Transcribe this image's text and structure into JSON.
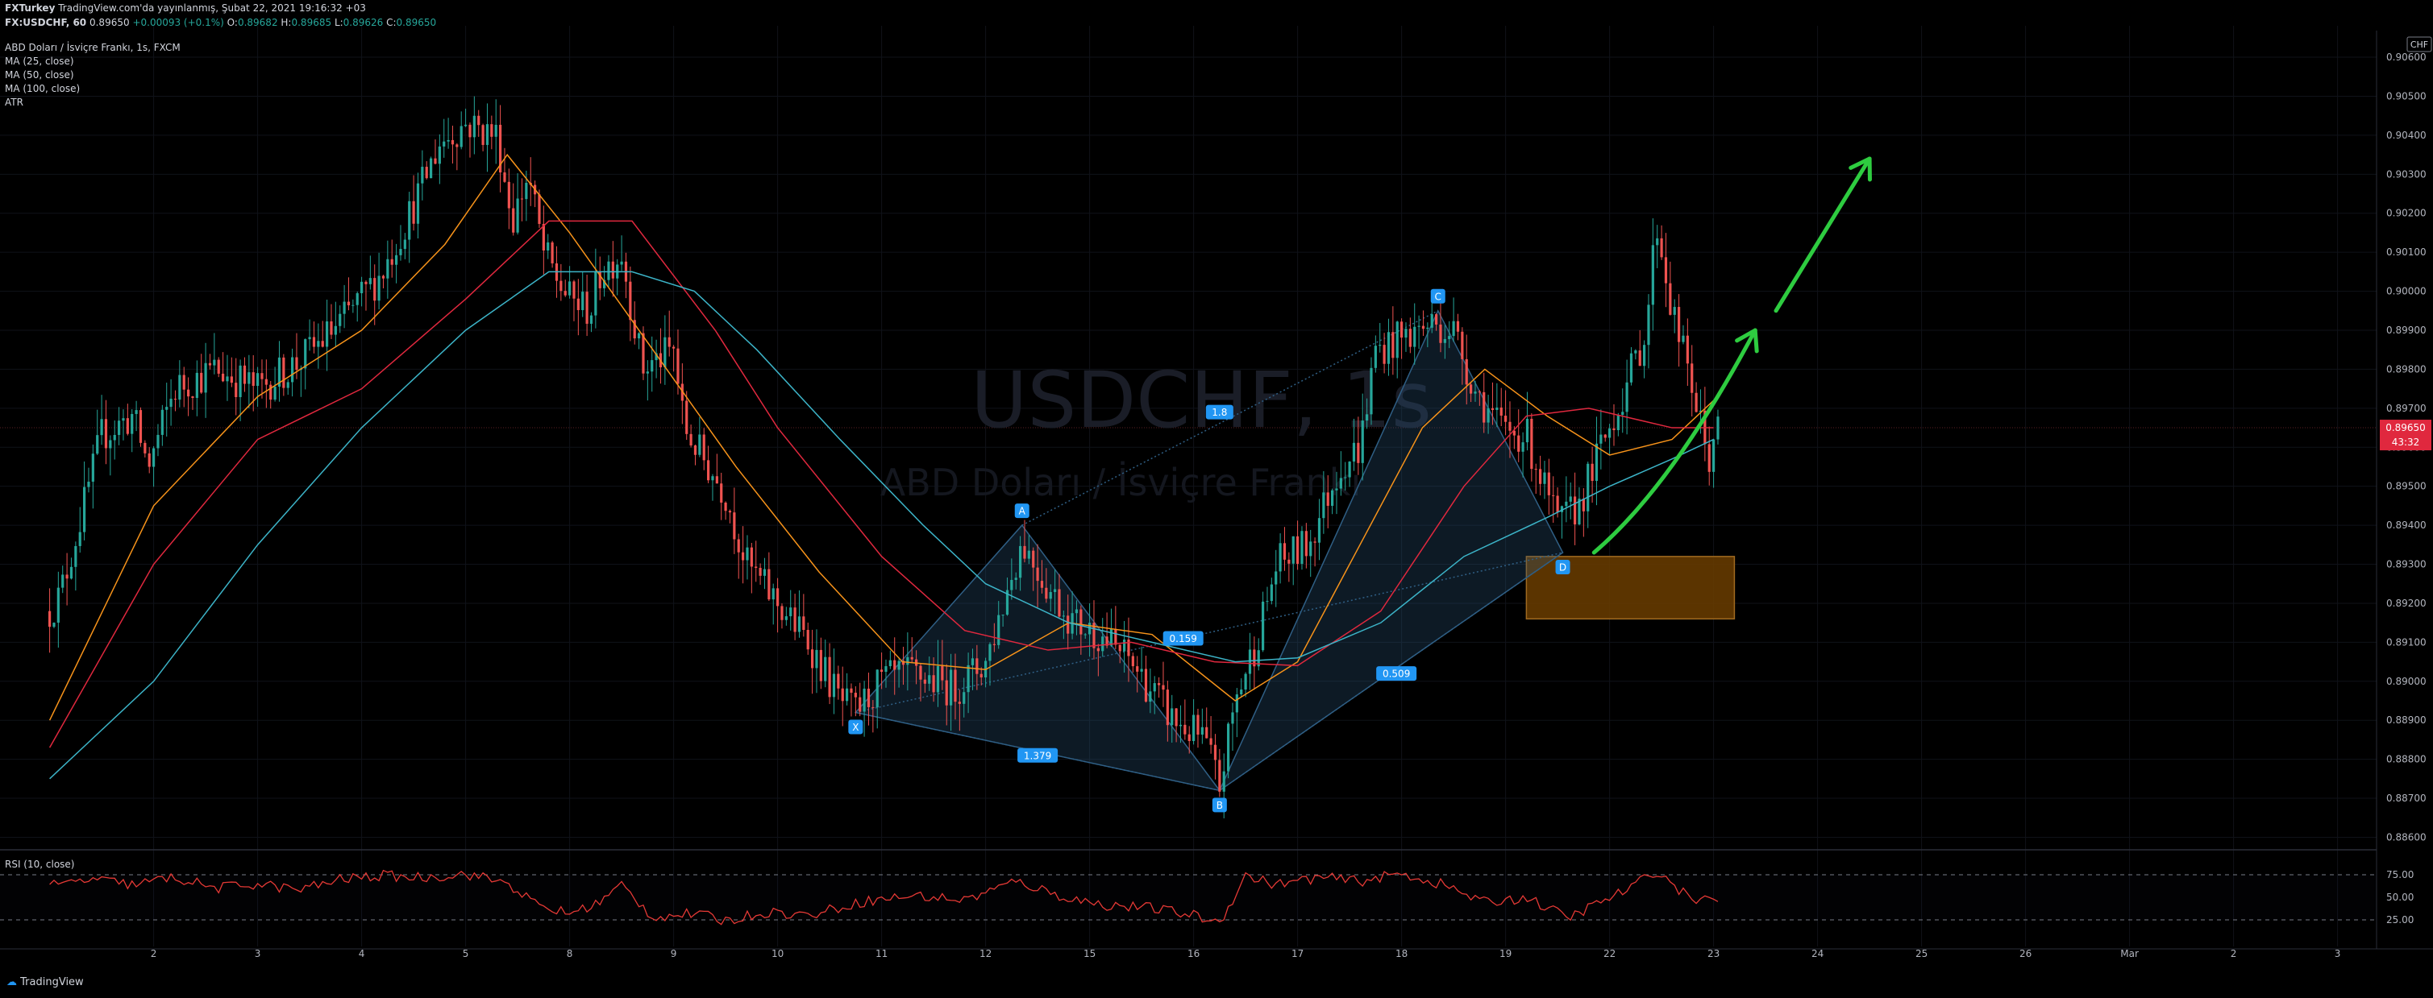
{
  "header": {
    "author": "FXTurkey",
    "published": "TradingView.com'da yayınlanmış, Şubat 22, 2021 19:16:32 +03",
    "symbol": "FX:USDCHF, 60",
    "last": "0.89650",
    "change": "+0.00093 (+0.1%)",
    "o_label": "O:",
    "o": "0.89682",
    "h_label": "H:",
    "h": "0.89685",
    "l_label": "L:",
    "l": "0.89626",
    "c_label": "C:",
    "c": "0.89650"
  },
  "legend": {
    "name": "ABD Doları / İsviçre Frankı, 1s, FXCM",
    "ma25": "MA (25, close)",
    "ma50": "MA (50, close)",
    "ma100": "MA (100, close)",
    "atr": "ATR"
  },
  "watermark": {
    "symbol": "USDCHF, 1s",
    "name": "ABD Doları / İsviçre Frankı"
  },
  "rsi": {
    "label": "RSI (10, close)",
    "levels": [
      "75.00",
      "50.00",
      "25.00"
    ]
  },
  "footer": {
    "brand": "TradingView"
  },
  "price_axis": {
    "currency": "CHF",
    "price_tag": "0.89650",
    "countdown": "43:32"
  },
  "colors": {
    "background": "#000000",
    "up": "#26a69a",
    "down": "#ef5350",
    "ma25": "#f7931a",
    "ma50": "#e0283e",
    "ma100": "#3cb4c8",
    "pattern": "#2f5f85",
    "label_bg": "#2196f3",
    "zone": "#6b3d00",
    "arrow": "#2ecc40",
    "rsi": "#e53935"
  },
  "chart_data": {
    "type": "candlestick",
    "title": "USDCHF, 1s",
    "ylim": [
      0.8857,
      0.9066
    ],
    "price_ticks": [
      "0.88600",
      "0.88700",
      "0.88800",
      "0.88900",
      "0.89000",
      "0.89100",
      "0.89200",
      "0.89300",
      "0.89400",
      "0.89500",
      "0.89600",
      "0.89700",
      "0.89800",
      "0.89900",
      "0.90000",
      "0.90100",
      "0.90200",
      "0.90300",
      "0.90400",
      "0.90500",
      "0.90600"
    ],
    "date_ticks": [
      "2",
      "3",
      "4",
      "5",
      "8",
      "9",
      "10",
      "11",
      "12",
      "15",
      "16",
      "17",
      "18",
      "19",
      "22",
      "23",
      "24",
      "25",
      "26",
      "Mar",
      "2",
      "3"
    ],
    "date_index": [
      1,
      2,
      3,
      4,
      5,
      6,
      7,
      8,
      9,
      10,
      11,
      12,
      13,
      14,
      15,
      16,
      17,
      18,
      19,
      20,
      21,
      22
    ],
    "path_points": [
      [
        0.0,
        0.8918
      ],
      [
        0.1,
        0.8922
      ],
      [
        0.3,
        0.8942
      ],
      [
        0.5,
        0.8963
      ],
      [
        0.8,
        0.8968
      ],
      [
        0.95,
        0.8955
      ],
      [
        1.2,
        0.8975
      ],
      [
        1.6,
        0.898
      ],
      [
        2.0,
        0.8975
      ],
      [
        2.4,
        0.8982
      ],
      [
        2.8,
        0.8992
      ],
      [
        3.2,
        0.9005
      ],
      [
        3.5,
        0.9022
      ],
      [
        3.75,
        0.9038
      ],
      [
        4.0,
        0.9043
      ],
      [
        4.3,
        0.904
      ],
      [
        4.45,
        0.9018
      ],
      [
        4.6,
        0.903
      ],
      [
        4.75,
        0.901
      ],
      [
        4.9,
        0.9002
      ],
      [
        5.0,
        0.8998
      ],
      [
        5.2,
        0.8995
      ],
      [
        5.3,
        0.9005
      ],
      [
        5.5,
        0.901
      ],
      [
        5.7,
        0.898
      ],
      [
        6.0,
        0.8985
      ],
      [
        6.1,
        0.8965
      ],
      [
        6.5,
        0.8948
      ],
      [
        6.7,
        0.893
      ],
      [
        7.0,
        0.892
      ],
      [
        7.3,
        0.891
      ],
      [
        7.6,
        0.8895
      ],
      [
        7.75,
        0.8892
      ],
      [
        8.0,
        0.89
      ],
      [
        8.3,
        0.8902
      ],
      [
        8.7,
        0.8898
      ],
      [
        9.0,
        0.8905
      ],
      [
        9.35,
        0.8936
      ],
      [
        9.6,
        0.8924
      ],
      [
        9.85,
        0.8915
      ],
      [
        10.1,
        0.8912
      ],
      [
        10.4,
        0.8905
      ],
      [
        10.8,
        0.889
      ],
      [
        11.1,
        0.8885
      ],
      [
        11.25,
        0.8873
      ],
      [
        11.4,
        0.8895
      ],
      [
        11.6,
        0.891
      ],
      [
        11.8,
        0.893
      ],
      [
        12.1,
        0.8935
      ],
      [
        12.4,
        0.8955
      ],
      [
        12.6,
        0.896
      ],
      [
        12.75,
        0.8985
      ],
      [
        13.0,
        0.8988
      ],
      [
        13.3,
        0.8992
      ],
      [
        13.5,
        0.899
      ],
      [
        13.7,
        0.8975
      ],
      [
        13.95,
        0.8965
      ],
      [
        14.2,
        0.8963
      ],
      [
        14.5,
        0.894
      ],
      [
        14.7,
        0.8945
      ],
      [
        14.95,
        0.8962
      ],
      [
        15.15,
        0.8975
      ],
      [
        15.35,
        0.899
      ],
      [
        15.45,
        0.9018
      ],
      [
        15.6,
        0.8995
      ],
      [
        15.8,
        0.8975
      ],
      [
        15.95,
        0.8956
      ],
      [
        16.0,
        0.8963
      ],
      [
        16.06,
        0.8965
      ]
    ],
    "series": [
      {
        "name": "MA (25, close)",
        "points": [
          [
            0.0,
            0.889
          ],
          [
            1.0,
            0.8945
          ],
          [
            2.0,
            0.8973
          ],
          [
            3.0,
            0.899
          ],
          [
            3.8,
            0.9012
          ],
          [
            4.4,
            0.9035
          ],
          [
            5.0,
            0.9015
          ],
          [
            5.8,
            0.8985
          ],
          [
            6.6,
            0.8955
          ],
          [
            7.4,
            0.8928
          ],
          [
            8.2,
            0.8905
          ],
          [
            9.0,
            0.8903
          ],
          [
            9.8,
            0.8915
          ],
          [
            10.6,
            0.8912
          ],
          [
            11.4,
            0.8895
          ],
          [
            12.0,
            0.8905
          ],
          [
            12.6,
            0.8935
          ],
          [
            13.2,
            0.8965
          ],
          [
            13.8,
            0.898
          ],
          [
            14.4,
            0.8968
          ],
          [
            15.0,
            0.8958
          ],
          [
            15.6,
            0.8962
          ],
          [
            16.0,
            0.8972
          ]
        ]
      },
      {
        "name": "MA (50, close)",
        "points": [
          [
            0.0,
            0.8883
          ],
          [
            1.0,
            0.893
          ],
          [
            2.0,
            0.8962
          ],
          [
            3.0,
            0.8975
          ],
          [
            4.0,
            0.8998
          ],
          [
            4.8,
            0.9018
          ],
          [
            5.6,
            0.9018
          ],
          [
            6.4,
            0.899
          ],
          [
            7.0,
            0.8965
          ],
          [
            8.0,
            0.8932
          ],
          [
            8.8,
            0.8913
          ],
          [
            9.6,
            0.8908
          ],
          [
            10.4,
            0.891
          ],
          [
            11.2,
            0.8905
          ],
          [
            12.0,
            0.8904
          ],
          [
            12.8,
            0.8918
          ],
          [
            13.6,
            0.895
          ],
          [
            14.2,
            0.8968
          ],
          [
            14.8,
            0.897
          ],
          [
            15.6,
            0.8965
          ],
          [
            16.0,
            0.8965
          ]
        ]
      },
      {
        "name": "MA (100, close)",
        "points": [
          [
            0.0,
            0.8875
          ],
          [
            1.0,
            0.89
          ],
          [
            2.0,
            0.8935
          ],
          [
            3.0,
            0.8965
          ],
          [
            4.0,
            0.899
          ],
          [
            4.8,
            0.9005
          ],
          [
            5.6,
            0.9005
          ],
          [
            6.2,
            0.9
          ],
          [
            6.8,
            0.8985
          ],
          [
            7.6,
            0.8962
          ],
          [
            8.4,
            0.894
          ],
          [
            9.0,
            0.8925
          ],
          [
            9.8,
            0.8915
          ],
          [
            10.6,
            0.891
          ],
          [
            11.4,
            0.8905
          ],
          [
            12.0,
            0.8906
          ],
          [
            12.8,
            0.8915
          ],
          [
            13.6,
            0.8932
          ],
          [
            14.4,
            0.8942
          ],
          [
            15.0,
            0.895
          ],
          [
            15.6,
            0.8957
          ],
          [
            16.0,
            0.8962
          ]
        ]
      }
    ],
    "pattern": {
      "points": [
        {
          "label": "X",
          "x": 7.75,
          "y": 0.8892
        },
        {
          "label": "A",
          "x": 9.35,
          "y": 0.894
        },
        {
          "label": "B",
          "x": 11.25,
          "y": 0.8872
        },
        {
          "label": "C",
          "x": 13.35,
          "y": 0.8995
        },
        {
          "label": "D",
          "x": 14.55,
          "y": 0.8933
        }
      ],
      "ratios": [
        {
          "text": "1.8",
          "x": 11.25,
          "y": 0.8969
        },
        {
          "text": "0.159",
          "x": 10.9,
          "y": 0.8911
        },
        {
          "text": "1.379",
          "x": 9.5,
          "y": 0.8881
        },
        {
          "text": "0.509",
          "x": 12.95,
          "y": 0.8902
        }
      ]
    },
    "zone": {
      "x0": 14.2,
      "x1": 16.2,
      "y0": 0.8932,
      "y1": 0.8916
    },
    "arrows": [
      {
        "kind": "curve",
        "points": [
          [
            14.85,
            0.8933
          ],
          [
            15.6,
            0.895
          ],
          [
            16.4,
            0.899
          ]
        ]
      },
      {
        "kind": "straight",
        "points": [
          [
            16.6,
            0.8995
          ],
          [
            17.5,
            0.9034
          ]
        ]
      }
    ],
    "rsi_points": [
      [
        0,
        62
      ],
      [
        0.4,
        70
      ],
      [
        0.8,
        64
      ],
      [
        1.2,
        72
      ],
      [
        1.6,
        60
      ],
      [
        2.0,
        65
      ],
      [
        2.4,
        58
      ],
      [
        2.8,
        70
      ],
      [
        3.2,
        74
      ],
      [
        3.6,
        72
      ],
      [
        4.0,
        76
      ],
      [
        4.4,
        66
      ],
      [
        4.7,
        40
      ],
      [
        5.0,
        32
      ],
      [
        5.3,
        45
      ],
      [
        5.5,
        64
      ],
      [
        5.8,
        28
      ],
      [
        6.2,
        32
      ],
      [
        6.5,
        24
      ],
      [
        6.9,
        34
      ],
      [
        7.3,
        30
      ],
      [
        7.8,
        45
      ],
      [
        8.3,
        52
      ],
      [
        8.8,
        47
      ],
      [
        9.3,
        68
      ],
      [
        9.7,
        52
      ],
      [
        10.1,
        42
      ],
      [
        10.6,
        38
      ],
      [
        11.0,
        30
      ],
      [
        11.25,
        22
      ],
      [
        11.5,
        74
      ],
      [
        11.8,
        64
      ],
      [
        12.2,
        72
      ],
      [
        12.6,
        68
      ],
      [
        13.0,
        76
      ],
      [
        13.4,
        64
      ],
      [
        13.8,
        44
      ],
      [
        14.2,
        50
      ],
      [
        14.6,
        27
      ],
      [
        14.9,
        44
      ],
      [
        15.2,
        60
      ],
      [
        15.45,
        80
      ],
      [
        15.7,
        55
      ],
      [
        15.9,
        46
      ],
      [
        16.06,
        50
      ]
    ]
  }
}
